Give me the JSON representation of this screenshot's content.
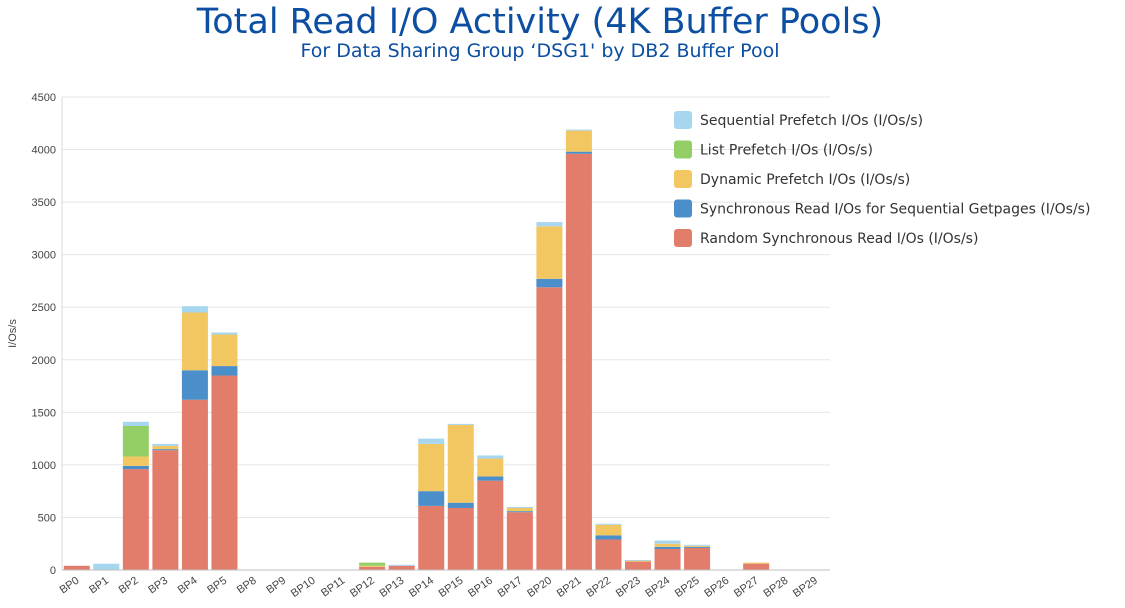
{
  "chart_data": {
    "type": "bar",
    "stacked": true,
    "title": "Total Read I/O Activity (4K Buffer Pools)",
    "subtitle": "For Data Sharing Group ‘DSG1' by DB2 Buffer Pool",
    "ylabel": "I/Os/s",
    "xlabel": "",
    "ylim": [
      0,
      4500
    ],
    "yticks": [
      0,
      500,
      1000,
      1500,
      2000,
      2500,
      3000,
      3500,
      4000,
      4500
    ],
    "grid": true,
    "legend_position": "top-right",
    "categories": [
      "BP0",
      "BP1",
      "BP2",
      "BP3",
      "BP4",
      "BP5",
      "BP8",
      "BP9",
      "BP10",
      "BP11",
      "BP12",
      "BP13",
      "BP14",
      "BP15",
      "BP16",
      "BP17",
      "BP20",
      "BP21",
      "BP22",
      "BP23",
      "BP24",
      "BP25",
      "BP26",
      "BP27",
      "BP28",
      "BP29"
    ],
    "series": [
      {
        "name": "Random Synchronous Read I/Os (I/Os/s)",
        "color": "#e27c6b",
        "values": [
          40,
          0,
          960,
          1140,
          1620,
          1850,
          0,
          0,
          0,
          0,
          30,
          40,
          610,
          590,
          850,
          550,
          2690,
          3960,
          290,
          80,
          200,
          210,
          0,
          60,
          0,
          0
        ]
      },
      {
        "name": "Synchronous Read I/Os for Sequential Getpages (I/Os/s)",
        "color": "#4a8fc9",
        "values": [
          0,
          0,
          30,
          10,
          280,
          90,
          0,
          0,
          0,
          0,
          0,
          0,
          140,
          50,
          40,
          10,
          80,
          20,
          40,
          0,
          20,
          10,
          0,
          0,
          0,
          0
        ]
      },
      {
        "name": "Dynamic Prefetch I/Os (I/Os/s)",
        "color": "#f2c762",
        "values": [
          0,
          0,
          90,
          30,
          550,
          300,
          0,
          0,
          0,
          0,
          10,
          0,
          450,
          740,
          170,
          30,
          500,
          200,
          100,
          10,
          30,
          10,
          0,
          10,
          0,
          0
        ]
      },
      {
        "name": "List Prefetch I/Os (I/Os/s)",
        "color": "#93cf66",
        "values": [
          0,
          0,
          290,
          0,
          0,
          0,
          0,
          0,
          0,
          0,
          30,
          0,
          0,
          0,
          0,
          0,
          0,
          0,
          0,
          0,
          0,
          0,
          0,
          0,
          0,
          0
        ]
      },
      {
        "name": "Sequential Prefetch I/Os (I/Os/s)",
        "color": "#a7d6ef",
        "values": [
          0,
          60,
          40,
          20,
          60,
          20,
          5,
          3,
          3,
          5,
          0,
          10,
          50,
          10,
          30,
          10,
          40,
          10,
          10,
          5,
          30,
          10,
          5,
          0,
          0,
          0
        ]
      }
    ],
    "legend_order": [
      "Sequential Prefetch I/Os (I/Os/s)",
      "List Prefetch I/Os (I/Os/s)",
      "Dynamic Prefetch I/Os (I/Os/s)",
      "Synchronous Read I/Os for Sequential Getpages (I/Os/s)",
      "Random Synchronous Read I/Os (I/Os/s)"
    ]
  }
}
